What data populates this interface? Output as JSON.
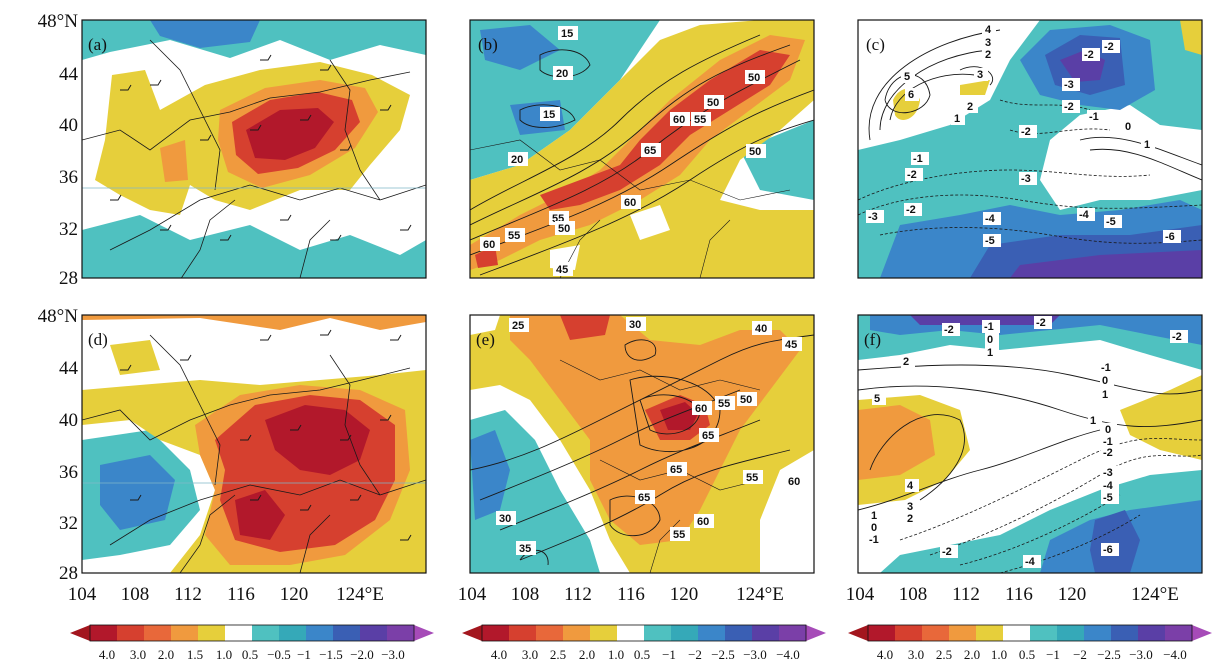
{
  "figure": {
    "colors": {
      "dark_red": "#b2182b",
      "red": "#d6402f",
      "orange_red": "#e8683a",
      "orange": "#f09a3e",
      "light_orange": "#f2b43f",
      "yellow": "#e6cf3b",
      "white": "#ffffff",
      "light_teal": "#4fc1c0",
      "teal": "#35a9b8",
      "blue": "#3b86c9",
      "dark_blue": "#3a5fb4",
      "indigo": "#5a3fa6",
      "purple": "#7b3fa8",
      "magenta": "#a64bb8",
      "border": "#1a1a1a"
    },
    "axes": {
      "y_labels": [
        "48°N",
        "44",
        "40",
        "36",
        "32",
        "28"
      ],
      "x_labels": [
        "104",
        "108",
        "112",
        "116",
        "120",
        "124°E"
      ]
    },
    "panels": [
      {
        "label": "(a)",
        "contour_labels": []
      },
      {
        "label": "(b)",
        "contour_labels": [
          "15",
          "20",
          "15",
          "20",
          "50",
          "50",
          "60",
          "55",
          "65",
          "60",
          "50",
          "55",
          "50",
          "60",
          "55",
          "45"
        ]
      },
      {
        "label": "(c)",
        "contour_labels": [
          "4",
          "3",
          "2",
          "5",
          "6",
          "3",
          "2",
          "1",
          "-2",
          "-2",
          "-3",
          "-2",
          "-1",
          "0",
          "1",
          "-2",
          "-1",
          "-2",
          "-3",
          "-3",
          "-2",
          "-4",
          "-4",
          "-5",
          "-5",
          "-6"
        ]
      },
      {
        "label": "(d)",
        "contour_labels": []
      },
      {
        "label": "(e)",
        "contour_labels": [
          "25",
          "30",
          "40",
          "45",
          "60",
          "55",
          "50",
          "65",
          "65",
          "65",
          "55",
          "60",
          "60",
          "30",
          "55",
          "35"
        ]
      },
      {
        "label": "(f)",
        "contour_labels": [
          "-2",
          "-1",
          "-2",
          "0",
          "-2",
          "1",
          "2",
          "-1",
          "0",
          "5",
          "1",
          "1",
          "0",
          "-1",
          "-2",
          "-3",
          "-4",
          "-5",
          "4",
          "3",
          "2",
          "1",
          "0",
          "-1",
          "-2",
          "-4",
          "-6"
        ]
      }
    ],
    "colorbars": [
      {
        "ticks": [
          "4.0",
          "3.0",
          "2.0",
          "1.5",
          "1.0",
          "0.5",
          "−0.5",
          "−1",
          "−1.5",
          "−2.0",
          "−3.0"
        ]
      },
      {
        "ticks": [
          "4.0",
          "3.0",
          "2.5",
          "2.0",
          "1.0",
          "0.5",
          "−1",
          "−2",
          "−2.5",
          "−3.0",
          "−4.0"
        ]
      },
      {
        "ticks": [
          "4.0",
          "3.0",
          "2.5",
          "2.0",
          "1.0",
          "0.5",
          "−1",
          "−2",
          "−2.5",
          "−3.0",
          "−4.0"
        ]
      }
    ]
  }
}
